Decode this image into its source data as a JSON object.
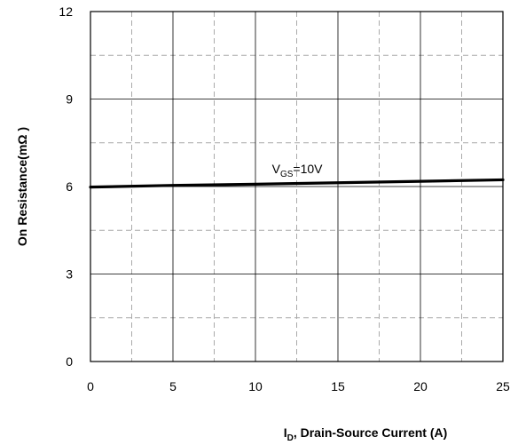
{
  "chart_data": {
    "type": "line",
    "title": "",
    "xlabel": {
      "main": "I",
      "sub": "D",
      "rest": ", Drain-Source Current (A)"
    },
    "ylabel": "On Resistance(mΩ )",
    "xlim": [
      0,
      25
    ],
    "ylim": [
      0,
      12
    ],
    "x_ticks": [
      0,
      5,
      10,
      15,
      20,
      25
    ],
    "y_ticks": [
      0,
      3,
      6,
      9,
      12
    ],
    "x_minor_grid": [
      2.5,
      7.5,
      12.5,
      17.5,
      22.5
    ],
    "y_minor_grid": [
      1.5,
      4.5,
      7.5,
      10.5
    ],
    "grid": true,
    "series": [
      {
        "name": "",
        "x": [
          0,
          5,
          10,
          15,
          20,
          25
        ],
        "y": [
          5.98,
          6.04,
          6.08,
          6.13,
          6.18,
          6.23
        ],
        "color": "#000000"
      }
    ],
    "annotations": [
      {
        "main": "V",
        "sub": "GS",
        "rest": "=10V",
        "x": 11,
        "y": 6.45
      }
    ]
  }
}
